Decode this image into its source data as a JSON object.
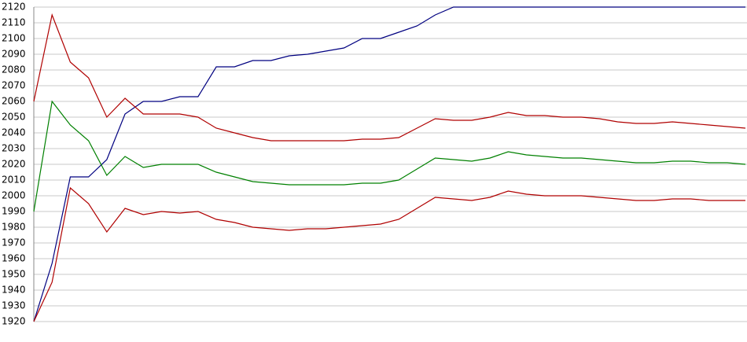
{
  "chart_data": {
    "type": "line",
    "categories": [
      null,
      null,
      null,
      null,
      null,
      null,
      null,
      null,
      null,
      null,
      null,
      null,
      null,
      null,
      null,
      null,
      null,
      null,
      null,
      null,
      null,
      null,
      null,
      null,
      null,
      null,
      null,
      null,
      null,
      null,
      null,
      null,
      null,
      null,
      null,
      null,
      null,
      null,
      null,
      null
    ],
    "series": [
      {
        "color": "#000080",
        "values": [
          1920,
          1957,
          2012,
          2012,
          2023,
          2052,
          2060,
          2060,
          2063,
          2063,
          2082,
          2082,
          2086,
          2086,
          2089,
          2090,
          2092,
          2094,
          2100,
          2100,
          2104,
          2108,
          2115,
          2120,
          2120,
          2120,
          2120,
          2120,
          2120,
          2120,
          2120,
          2120,
          2120,
          2120,
          2120,
          2120,
          2120,
          2120,
          2120,
          2120
        ]
      },
      {
        "color": "#b00000",
        "values": [
          2060,
          2115,
          2085,
          2075,
          2050,
          2062,
          2052,
          2052,
          2052,
          2050,
          2043,
          2040,
          2037,
          2035,
          2035,
          2035,
          2035,
          2035,
          2036,
          2036,
          2037,
          2043,
          2049,
          2048,
          2048,
          2050,
          2053,
          2051,
          2051,
          2050,
          2050,
          2049,
          2047,
          2046,
          2046,
          2047,
          2046,
          2045,
          2044,
          2043
        ]
      },
      {
        "color": "#008000",
        "values": [
          1990,
          2060,
          2045,
          2035,
          2013,
          2025,
          2018,
          2020,
          2020,
          2020,
          2015,
          2012,
          2009,
          2008,
          2007,
          2007,
          2007,
          2007,
          2008,
          2008,
          2010,
          2017,
          2024,
          2023,
          2022,
          2024,
          2028,
          2026,
          2025,
          2024,
          2024,
          2023,
          2022,
          2021,
          2021,
          2022,
          2022,
          2021,
          2021,
          2020
        ]
      },
      {
        "color": "#b00000",
        "values": [
          1920,
          1945,
          2005,
          1995,
          1977,
          1992,
          1988,
          1990,
          1989,
          1990,
          1985,
          1983,
          1980,
          1979,
          1978,
          1979,
          1979,
          1980,
          1981,
          1982,
          1985,
          1992,
          1999,
          1998,
          1997,
          1999,
          2003,
          2001,
          2000,
          2000,
          2000,
          1999,
          1998,
          1997,
          1997,
          1998,
          1998,
          1997,
          1997,
          1997
        ]
      }
    ],
    "ylim": [
      1920,
      2120
    ],
    "yticks": [
      1920,
      1930,
      1940,
      1950,
      1960,
      1970,
      1980,
      1990,
      2000,
      2010,
      2020,
      2030,
      2040,
      2050,
      2060,
      2070,
      2080,
      2090,
      2100,
      2110,
      2120
    ],
    "grid": true
  }
}
